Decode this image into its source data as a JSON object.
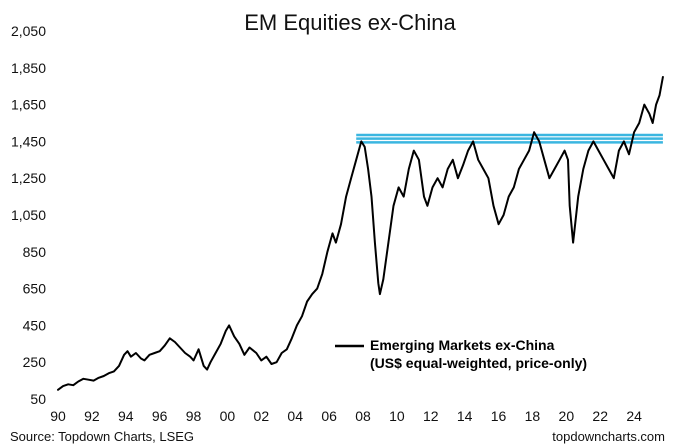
{
  "chart_data": {
    "type": "line",
    "title": "EM Equities ex-China",
    "xlabel": "",
    "ylabel": "",
    "ylim": [
      50,
      2050
    ],
    "xlim": [
      1990,
      2026
    ],
    "y_ticks": [
      50,
      250,
      450,
      650,
      850,
      1050,
      1250,
      1450,
      1650,
      1850,
      2050
    ],
    "y_tick_labels": [
      "50",
      "250",
      "450",
      "650",
      "850",
      "1,050",
      "1,250",
      "1,450",
      "1,650",
      "1,850",
      "2,050"
    ],
    "x_ticks": [
      1990,
      1992,
      1994,
      1996,
      1998,
      2000,
      2002,
      2004,
      2006,
      2008,
      2010,
      2012,
      2014,
      2016,
      2018,
      2020,
      2022,
      2024
    ],
    "x_tick_labels": [
      "90",
      "92",
      "94",
      "96",
      "98",
      "00",
      "02",
      "04",
      "06",
      "08",
      "10",
      "12",
      "14",
      "16",
      "18",
      "20",
      "22",
      "24"
    ],
    "grid": false,
    "legend_position": "lower-right",
    "series": [
      {
        "name": "Emerging Markets ex-China (US$ equal-weighted, price-only)",
        "legend_lines": [
          "Emerging Markets ex-China",
          "(US$ equal-weighted, price-only)"
        ],
        "color": "#000000",
        "x": [
          1990.0,
          1990.3,
          1990.6,
          1990.9,
          1991.2,
          1991.5,
          1991.8,
          1992.1,
          1992.4,
          1992.7,
          1993.0,
          1993.3,
          1993.6,
          1993.9,
          1994.1,
          1994.3,
          1994.6,
          1994.9,
          1995.1,
          1995.4,
          1995.7,
          1996.0,
          1996.3,
          1996.6,
          1996.9,
          1997.2,
          1997.5,
          1997.8,
          1998.0,
          1998.3,
          1998.6,
          1998.8,
          1999.0,
          1999.3,
          1999.6,
          1999.9,
          2000.1,
          2000.4,
          2000.7,
          2001.0,
          2001.3,
          2001.7,
          2002.0,
          2002.3,
          2002.6,
          2002.9,
          2003.2,
          2003.5,
          2003.8,
          2004.1,
          2004.4,
          2004.7,
          2005.0,
          2005.3,
          2005.6,
          2005.9,
          2006.2,
          2006.4,
          2006.7,
          2007.0,
          2007.3,
          2007.6,
          2007.9,
          2008.1,
          2008.3,
          2008.5,
          2008.7,
          2008.9,
          2009.0,
          2009.2,
          2009.5,
          2009.8,
          2010.1,
          2010.4,
          2010.7,
          2011.0,
          2011.3,
          2011.6,
          2011.8,
          2012.1,
          2012.4,
          2012.7,
          2013.0,
          2013.3,
          2013.6,
          2013.9,
          2014.2,
          2014.5,
          2014.8,
          2015.1,
          2015.4,
          2015.7,
          2016.0,
          2016.3,
          2016.6,
          2016.9,
          2017.2,
          2017.5,
          2017.8,
          2018.1,
          2018.4,
          2018.7,
          2019.0,
          2019.3,
          2019.6,
          2019.9,
          2020.1,
          2020.2,
          2020.4,
          2020.7,
          2021.0,
          2021.3,
          2021.6,
          2021.9,
          2022.2,
          2022.5,
          2022.8,
          2023.1,
          2023.4,
          2023.7,
          2024.0,
          2024.3,
          2024.6,
          2024.9,
          2025.1,
          2025.3,
          2025.5,
          2025.7
        ],
        "values": [
          100,
          120,
          130,
          125,
          145,
          160,
          155,
          150,
          165,
          175,
          190,
          200,
          230,
          290,
          310,
          280,
          300,
          270,
          260,
          290,
          300,
          310,
          340,
          380,
          360,
          330,
          300,
          280,
          260,
          320,
          230,
          210,
          250,
          300,
          350,
          420,
          450,
          390,
          350,
          290,
          330,
          300,
          260,
          280,
          240,
          250,
          300,
          320,
          380,
          450,
          500,
          580,
          620,
          650,
          730,
          850,
          950,
          900,
          1000,
          1150,
          1250,
          1350,
          1450,
          1420,
          1300,
          1150,
          900,
          680,
          620,
          700,
          900,
          1100,
          1200,
          1150,
          1300,
          1400,
          1350,
          1150,
          1100,
          1200,
          1250,
          1200,
          1300,
          1350,
          1250,
          1320,
          1400,
          1450,
          1350,
          1300,
          1250,
          1100,
          1000,
          1050,
          1150,
          1200,
          1300,
          1350,
          1400,
          1500,
          1450,
          1350,
          1250,
          1300,
          1350,
          1400,
          1350,
          1100,
          900,
          1150,
          1300,
          1400,
          1450,
          1400,
          1350,
          1300,
          1250,
          1400,
          1450,
          1380,
          1500,
          1550,
          1650,
          1600,
          1550,
          1650,
          1700,
          1800
        ]
      }
    ],
    "reference_band": {
      "label": "",
      "y": [
        1445,
        1465,
        1485
      ],
      "x_start": 2007.6,
      "x_end": 2025.7,
      "color": "#3bb6e0"
    }
  },
  "footer": {
    "source": "Source: Topdown Charts, LSEG",
    "site": "topdowncharts.com"
  }
}
